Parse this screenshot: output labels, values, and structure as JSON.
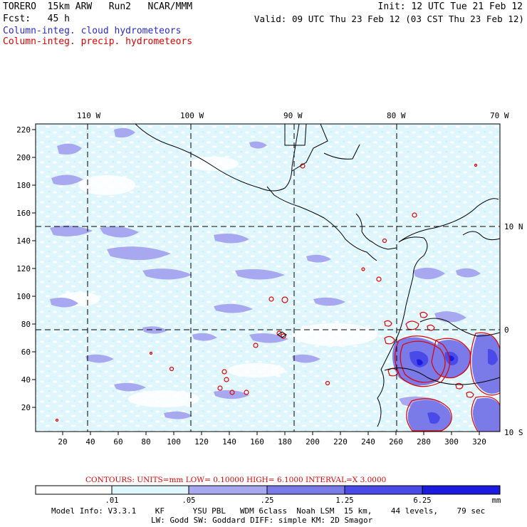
{
  "header": {
    "left_line1": "TORERO  15km ARW   Run2   NCAR/MMM",
    "left_line2": "Fcst:   45 h",
    "right_line1": "Init: 12 UTC Tue 21 Feb 12",
    "right_line2": "Valid: 09 UTC Thu 23 Feb 12 (03 CST Thu 23 Feb 12)",
    "field_cloud": "Column-integ. cloud hydrometeors",
    "field_precip": "Column-integ. precip. hydrometeors"
  },
  "colors": {
    "cloud_text": "#2a2ad0",
    "precip_text": "#e00000",
    "contour": "#e00000",
    "level1": "#dff6fd",
    "level2": "#c9eefb",
    "level3": "#a8a8f0",
    "level4": "#7a7ae8",
    "level5": "#4a4ae8",
    "level6": "#1a1ae0"
  },
  "map": {
    "top_lon_labels": [
      "110 W",
      "100 W",
      "90 W",
      "80 W",
      "70 W"
    ],
    "right_lat_labels": [
      "10 N",
      "0",
      "10 S"
    ],
    "y_ticks": [
      "220",
      "200",
      "180",
      "160",
      "140",
      "120",
      "100",
      "80",
      "60",
      "40",
      "20"
    ],
    "x_ticks": [
      "20",
      "40",
      "60",
      "80",
      "100",
      "120",
      "140",
      "160",
      "180",
      "200",
      "220",
      "240",
      "260",
      "280",
      "300",
      "320"
    ]
  },
  "contour_note": "CONTOURS:  UNITS=mm  LOW= 0.10000     HIGH=  6.1000     INTERVAL=X  3.0000",
  "colorbar": {
    "labels": [
      ".01",
      ".05",
      ".25",
      "1.25",
      "6.25"
    ],
    "units": "mm"
  },
  "footer": {
    "line1": "Model Info: V3.3.1    KF      YSU PBL   WDM 6class  Noah LSM  15 km,    44 levels,    79 sec",
    "line2": "LW: Godd SW: Goddard DIFF: simple KM: 2D Smagor"
  }
}
